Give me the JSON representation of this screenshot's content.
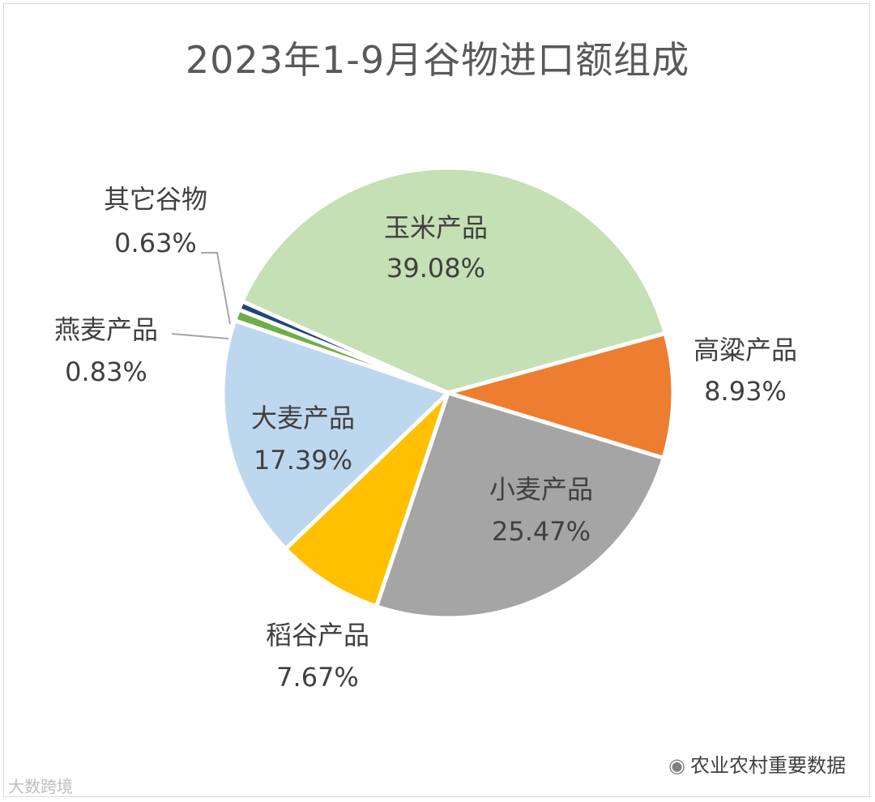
{
  "chart_data": {
    "type": "pie",
    "title": "2023年1-9月谷物进口额组成",
    "slices": [
      {
        "name": "玉米产品",
        "value": 39.08,
        "label": "39.08%",
        "color": "#C5E0B4"
      },
      {
        "name": "高粱产品",
        "value": 8.93,
        "label": "8.93%",
        "color": "#ED7D31"
      },
      {
        "name": "小麦产品",
        "value": 25.47,
        "label": "25.47%",
        "color": "#A5A5A5"
      },
      {
        "name": "稻谷产品",
        "value": 7.67,
        "label": "7.67%",
        "color": "#FFC000"
      },
      {
        "name": "大麦产品",
        "value": 17.39,
        "label": "17.39%",
        "color": "#BDD7EE"
      },
      {
        "name": "燕麦产品",
        "value": 0.83,
        "label": "0.83%",
        "color": "#70AD47"
      },
      {
        "name": "其它谷物",
        "value": 0.63,
        "label": "0.63%",
        "color": "#264478"
      }
    ],
    "legend": "none"
  },
  "watermark": {
    "right": "农业农村重要数据",
    "left": "大数跨境",
    "right_icon": "wechat-icon"
  }
}
